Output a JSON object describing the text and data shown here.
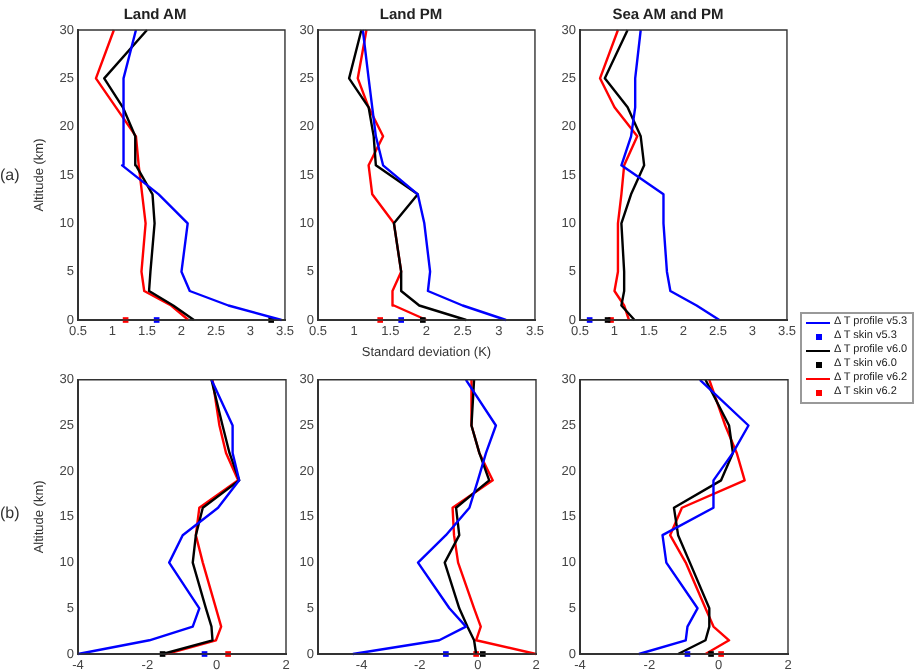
{
  "chart_data": [
    {
      "type": "line",
      "title": "Land AM",
      "ylabel": "Altitude (km)",
      "annotations": [
        "(a)"
      ],
      "xlim": [
        0.5,
        3.5
      ],
      "xticks": [
        0.5,
        1,
        1.5,
        2,
        2.5,
        3,
        3.5
      ],
      "ylim": [
        0,
        30
      ],
      "yticks": [
        0,
        5,
        10,
        15,
        20,
        25,
        30
      ],
      "grid": false,
      "legend": false,
      "series": [
        {
          "color": "#0000ff",
          "x": [
            3.45,
            2.68,
            2.12,
            2.0,
            2.09,
            1.67,
            1.14,
            1.16,
            1.34
          ],
          "values": [
            0,
            1.5,
            3,
            5,
            10,
            13,
            16,
            25,
            30
          ]
        },
        {
          "type": "scatter",
          "marker": "square",
          "color": "#0000ff",
          "x": [
            1.64
          ],
          "values": [
            0
          ]
        },
        {
          "color": "#000000",
          "x": [
            2.18,
            1.88,
            1.53,
            1.55,
            1.61,
            1.58,
            1.34,
            1.33,
            1.15,
            0.88,
            1.5
          ],
          "values": [
            0,
            1.5,
            3,
            5,
            10,
            13,
            16,
            19,
            22,
            25,
            30
          ]
        },
        {
          "type": "scatter",
          "marker": "square",
          "color": "#000000",
          "x": [
            3.3
          ],
          "values": [
            0
          ]
        },
        {
          "color": "#ff0000",
          "x": [
            2.1,
            1.85,
            1.46,
            1.42,
            1.48,
            1.43,
            1.38,
            1.34,
            1.05,
            0.76,
            1.02
          ],
          "values": [
            0,
            1.5,
            3,
            5,
            10,
            13,
            16,
            19,
            22,
            25,
            30
          ]
        },
        {
          "type": "scatter",
          "marker": "square",
          "color": "#ff0000",
          "x": [
            1.19
          ],
          "values": [
            0
          ]
        }
      ]
    },
    {
      "type": "line",
      "title": "Land PM",
      "xlabel": "Standard deviation (K)",
      "xlim": [
        0.5,
        3.5
      ],
      "xticks": [
        0.5,
        1,
        1.5,
        2,
        2.5,
        3,
        3.5
      ],
      "ylim": [
        0,
        30
      ],
      "yticks": [
        0,
        5,
        10,
        15,
        20,
        25,
        30
      ],
      "grid": false,
      "legend": false,
      "series": [
        {
          "color": "#0000ff",
          "x": [
            3.1,
            2.5,
            2.02,
            2.05,
            1.97,
            1.88,
            1.4,
            1.3,
            1.25,
            1.2,
            1.12
          ],
          "values": [
            0,
            1.5,
            3,
            5,
            10,
            13,
            16,
            19,
            22,
            25,
            30
          ]
        },
        {
          "type": "scatter",
          "marker": "square",
          "color": "#0000ff",
          "x": [
            1.65
          ],
          "values": [
            0
          ]
        },
        {
          "color": "#000000",
          "x": [
            2.55,
            1.9,
            1.65,
            1.65,
            1.55,
            1.88,
            1.3,
            1.27,
            1.2,
            0.93,
            1.1
          ],
          "values": [
            0,
            1.5,
            3,
            5,
            10,
            13,
            16,
            19,
            22,
            25,
            30
          ]
        },
        {
          "type": "scatter",
          "marker": "square",
          "color": "#000000",
          "x": [
            1.95
          ],
          "values": [
            0
          ]
        },
        {
          "color": "#ff0000",
          "x": [
            2.0,
            1.55,
            1.53,
            1.65,
            1.55,
            1.25,
            1.2,
            1.4,
            1.2,
            1.05,
            1.17
          ],
          "values": [
            0,
            1.5,
            3,
            5,
            10,
            13,
            16,
            19,
            22,
            25,
            30
          ]
        },
        {
          "type": "scatter",
          "marker": "square",
          "color": "#ff0000",
          "x": [
            1.36
          ],
          "values": [
            0
          ]
        }
      ]
    },
    {
      "type": "line",
      "title": "Sea AM and PM",
      "xlim": [
        0.5,
        3.5
      ],
      "xticks": [
        0.5,
        1,
        1.5,
        2,
        2.5,
        3,
        3.5
      ],
      "ylim": [
        0,
        30
      ],
      "yticks": [
        0,
        5,
        10,
        15,
        20,
        25,
        30
      ],
      "grid": false,
      "legend": "right",
      "series": [
        {
          "name": "Δ T profile v5.3",
          "color": "#0000ff",
          "x": [
            2.52,
            2.19,
            1.81,
            1.76,
            1.71,
            1.71,
            1.1,
            1.24,
            1.3,
            1.3,
            1.38
          ],
          "values": [
            0,
            1.5,
            3,
            5,
            10,
            13,
            16,
            19,
            22,
            25,
            30
          ]
        },
        {
          "name": "Δ T skin v5.3",
          "type": "scatter",
          "marker": "square",
          "color": "#0000ff",
          "x": [
            0.64
          ],
          "values": [
            0
          ]
        },
        {
          "name": "Δ T profile v6.0",
          "color": "#000000",
          "x": [
            1.29,
            1.1,
            1.14,
            1.14,
            1.1,
            1.24,
            1.43,
            1.38,
            1.19,
            0.86,
            1.19
          ],
          "values": [
            0,
            1.5,
            3,
            5,
            10,
            13,
            16,
            19,
            22,
            25,
            30
          ]
        },
        {
          "name": "Δ T skin v6.0",
          "type": "scatter",
          "marker": "square",
          "color": "#000000",
          "x": [
            0.9
          ],
          "values": [
            0
          ]
        },
        {
          "name": "Δ T profile v6.2",
          "color": "#ff0000",
          "x": [
            1.21,
            1.14,
            1.0,
            1.05,
            1.05,
            1.1,
            1.14,
            1.33,
            1.0,
            0.79,
            1.05
          ],
          "values": [
            0,
            1.5,
            3,
            5,
            10,
            13,
            16,
            19,
            22,
            25,
            30
          ]
        },
        {
          "name": "Δ T skin v6.2",
          "type": "scatter",
          "marker": "square",
          "color": "#ff0000",
          "x": [
            0.95
          ],
          "values": [
            0
          ]
        }
      ]
    },
    {
      "type": "line",
      "ylabel": "Altitude (km)",
      "annotations": [
        "(b)"
      ],
      "xlim": [
        -4,
        2
      ],
      "xticks": [
        -4,
        -2,
        0,
        2
      ],
      "ylim": [
        0,
        30
      ],
      "yticks": [
        0,
        5,
        10,
        15,
        20,
        25,
        30
      ],
      "grid": false,
      "legend": false,
      "series": [
        {
          "color": "#0000ff",
          "x": [
            -4,
            -1.94,
            -0.69,
            -0.5,
            -1.37,
            -0.98,
            0.04,
            0.65,
            0.46,
            0.46,
            -0.15
          ],
          "values": [
            0,
            1.5,
            3,
            5,
            10,
            13,
            16,
            19,
            22,
            25,
            30
          ]
        },
        {
          "type": "scatter",
          "marker": "square",
          "color": "#0000ff",
          "x": [
            -0.35
          ],
          "values": [
            0
          ]
        },
        {
          "color": "#000000",
          "x": [
            -1.56,
            -0.12,
            -0.15,
            -0.31,
            -0.69,
            -0.6,
            -0.4,
            0.65,
            0.37,
            0.17,
            -0.15
          ],
          "values": [
            0,
            1.5,
            3,
            5,
            10,
            13,
            16,
            19,
            22,
            25,
            30
          ]
        },
        {
          "type": "scatter",
          "marker": "square",
          "color": "#000000",
          "x": [
            -1.56
          ],
          "values": [
            0
          ]
        },
        {
          "color": "#ff0000",
          "x": [
            -1.46,
            -0.02,
            0.13,
            -0.02,
            -0.4,
            -0.6,
            -0.5,
            0.62,
            0.27,
            0.08,
            -0.12
          ],
          "values": [
            0,
            1.5,
            3,
            5,
            10,
            13,
            16,
            19,
            22,
            25,
            30
          ]
        },
        {
          "type": "scatter",
          "marker": "square",
          "color": "#ff0000",
          "x": [
            0.33
          ],
          "values": [
            0
          ]
        }
      ]
    },
    {
      "type": "line",
      "xlim": [
        -5.5,
        2
      ],
      "xticks": [
        -4,
        -2,
        0,
        2
      ],
      "ylim": [
        0,
        30
      ],
      "yticks": [
        0,
        5,
        10,
        15,
        20,
        25,
        30
      ],
      "grid": false,
      "legend": false,
      "series": [
        {
          "color": "#0000ff",
          "x": [
            -4.3,
            -1.33,
            -0.41,
            -0.98,
            -2.06,
            -1.1,
            -0.29,
            0.0,
            0.28,
            0.62,
            -0.41
          ],
          "values": [
            0,
            1.5,
            3,
            5,
            10,
            13,
            16,
            19,
            22,
            25,
            30
          ]
        },
        {
          "type": "scatter",
          "marker": "square",
          "color": "#0000ff",
          "x": [
            -1.1
          ],
          "values": [
            0
          ]
        },
        {
          "color": "#000000",
          "x": [
            -0.06,
            -0.13,
            -0.36,
            -0.64,
            -1.14,
            -0.64,
            -0.75,
            0.39,
            0.05,
            -0.22,
            -0.13
          ],
          "values": [
            0,
            1.5,
            3,
            5,
            10,
            13,
            16,
            19,
            22,
            25,
            30
          ]
        },
        {
          "type": "scatter",
          "marker": "square",
          "color": "#000000",
          "x": [
            0.17
          ],
          "values": [
            0
          ]
        },
        {
          "color": "#ff0000",
          "x": [
            2.0,
            -0.06,
            0.1,
            -0.13,
            -0.68,
            -0.82,
            -0.87,
            0.51,
            0.05,
            -0.22,
            -0.22
          ],
          "values": [
            0,
            1.5,
            3,
            5,
            10,
            13,
            16,
            19,
            22,
            25,
            30
          ]
        },
        {
          "type": "scatter",
          "marker": "square",
          "color": "#ff0000",
          "x": [
            -0.06
          ],
          "values": [
            0
          ]
        }
      ]
    },
    {
      "type": "line",
      "xlim": [
        -4,
        2
      ],
      "xticks": [
        -4,
        -2,
        0,
        2
      ],
      "ylim": [
        0,
        30
      ],
      "yticks": [
        0,
        5,
        10,
        15,
        20,
        25,
        30
      ],
      "grid": false,
      "legend": false,
      "series": [
        {
          "color": "#0000ff",
          "x": [
            -2.3,
            -0.95,
            -0.9,
            -0.61,
            -1.51,
            -1.62,
            -0.15,
            -0.15,
            0.41,
            0.86,
            -0.54
          ],
          "values": [
            0,
            1.5,
            3,
            5,
            10,
            13,
            16,
            19,
            22,
            25,
            30
          ]
        },
        {
          "type": "scatter",
          "marker": "square",
          "color": "#0000ff",
          "x": [
            -0.9
          ],
          "values": [
            0
          ]
        },
        {
          "color": "#000000",
          "x": [
            -1.17,
            -0.38,
            -0.27,
            -0.27,
            -0.83,
            -1.17,
            -1.29,
            0.07,
            0.41,
            0.3,
            -0.38
          ],
          "values": [
            0,
            1.5,
            3,
            5,
            10,
            13,
            16,
            19,
            22,
            25,
            30
          ]
        },
        {
          "type": "scatter",
          "marker": "square",
          "color": "#000000",
          "x": [
            -0.22
          ],
          "values": [
            0
          ]
        },
        {
          "color": "#ff0000",
          "x": [
            -0.38,
            0.3,
            -0.15,
            -0.38,
            -0.95,
            -1.4,
            -1.06,
            0.75,
            0.52,
            0.19,
            -0.27
          ],
          "values": [
            0,
            1.5,
            3,
            5,
            10,
            13,
            16,
            19,
            22,
            25,
            30
          ]
        },
        {
          "type": "scatter",
          "marker": "square",
          "color": "#ff0000",
          "x": [
            0.07
          ],
          "values": [
            0
          ]
        }
      ]
    }
  ]
}
